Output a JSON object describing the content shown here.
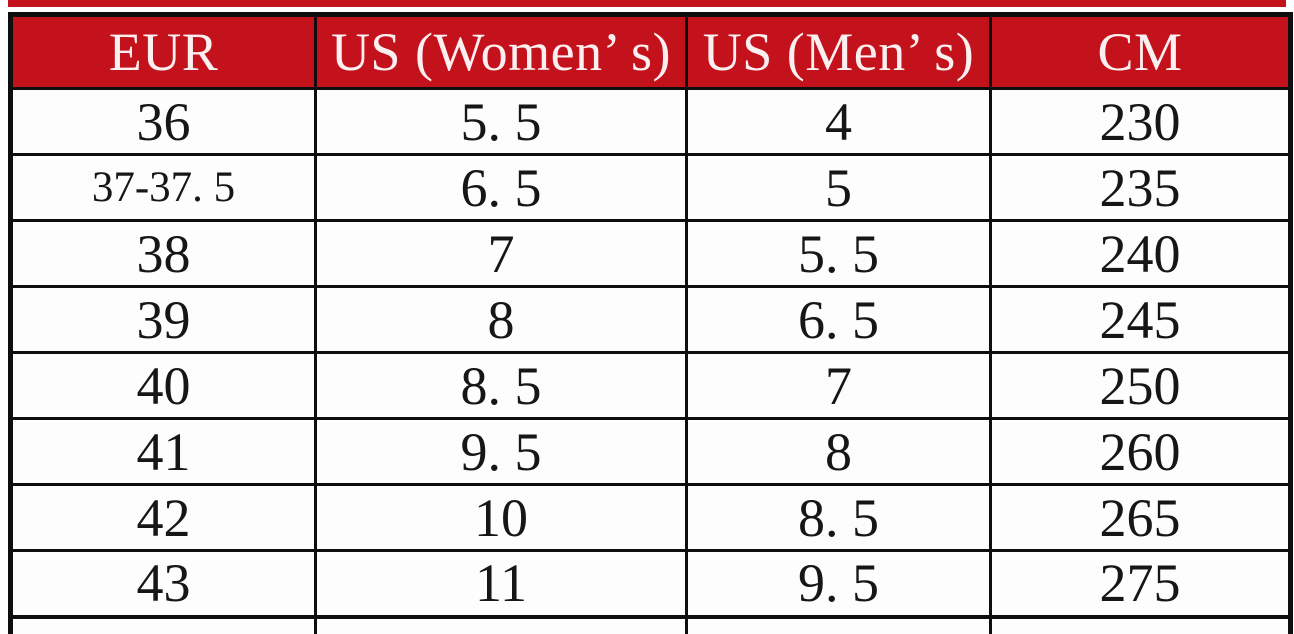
{
  "page": {
    "background_color": "#ffffff",
    "accent_red": "#c4121d",
    "border_color": "#0e0e0e",
    "cell_text_color": "#161616",
    "header_text_color": "#fbeff0"
  },
  "table": {
    "title": "shoe-size-conversion-chart",
    "columns": [
      "EUR",
      "US (Women’ s)",
      "US (Men’ s)",
      "CM"
    ],
    "rows": [
      [
        "36",
        "5. 5",
        "4",
        "230"
      ],
      [
        "37-37. 5",
        "6. 5",
        "5",
        "235"
      ],
      [
        "38",
        "7",
        "5. 5",
        "240"
      ],
      [
        "39",
        "8",
        "6. 5",
        "245"
      ],
      [
        "40",
        "8. 5",
        "7",
        "250"
      ],
      [
        "41",
        "9. 5",
        "8",
        "260"
      ],
      [
        "42",
        "10",
        "8. 5",
        "265"
      ],
      [
        "43",
        "11",
        "9. 5",
        "275"
      ]
    ],
    "partial_next_row_visible": true
  },
  "chart_data": {
    "type": "table",
    "title": "Shoe size conversion chart (EUR / US Women's / US Men's / CM)",
    "columns": [
      "EUR",
      "US (Women's)",
      "US (Men's)",
      "CM"
    ],
    "rows": [
      [
        "36",
        "5.5",
        "4",
        "230"
      ],
      [
        "37-37.5",
        "6.5",
        "5",
        "235"
      ],
      [
        "38",
        "7",
        "5.5",
        "240"
      ],
      [
        "39",
        "8",
        "6.5",
        "245"
      ],
      [
        "40",
        "8.5",
        "7",
        "250"
      ],
      [
        "41",
        "9.5",
        "8",
        "260"
      ],
      [
        "42",
        "10",
        "8.5",
        "265"
      ],
      [
        "43",
        "11",
        "9.5",
        "275"
      ]
    ],
    "header_background": "#c4121d",
    "header_text_color": "#ffffff",
    "grid": true,
    "note": "a ninth row is partially visible, cut off at the bottom edge"
  }
}
